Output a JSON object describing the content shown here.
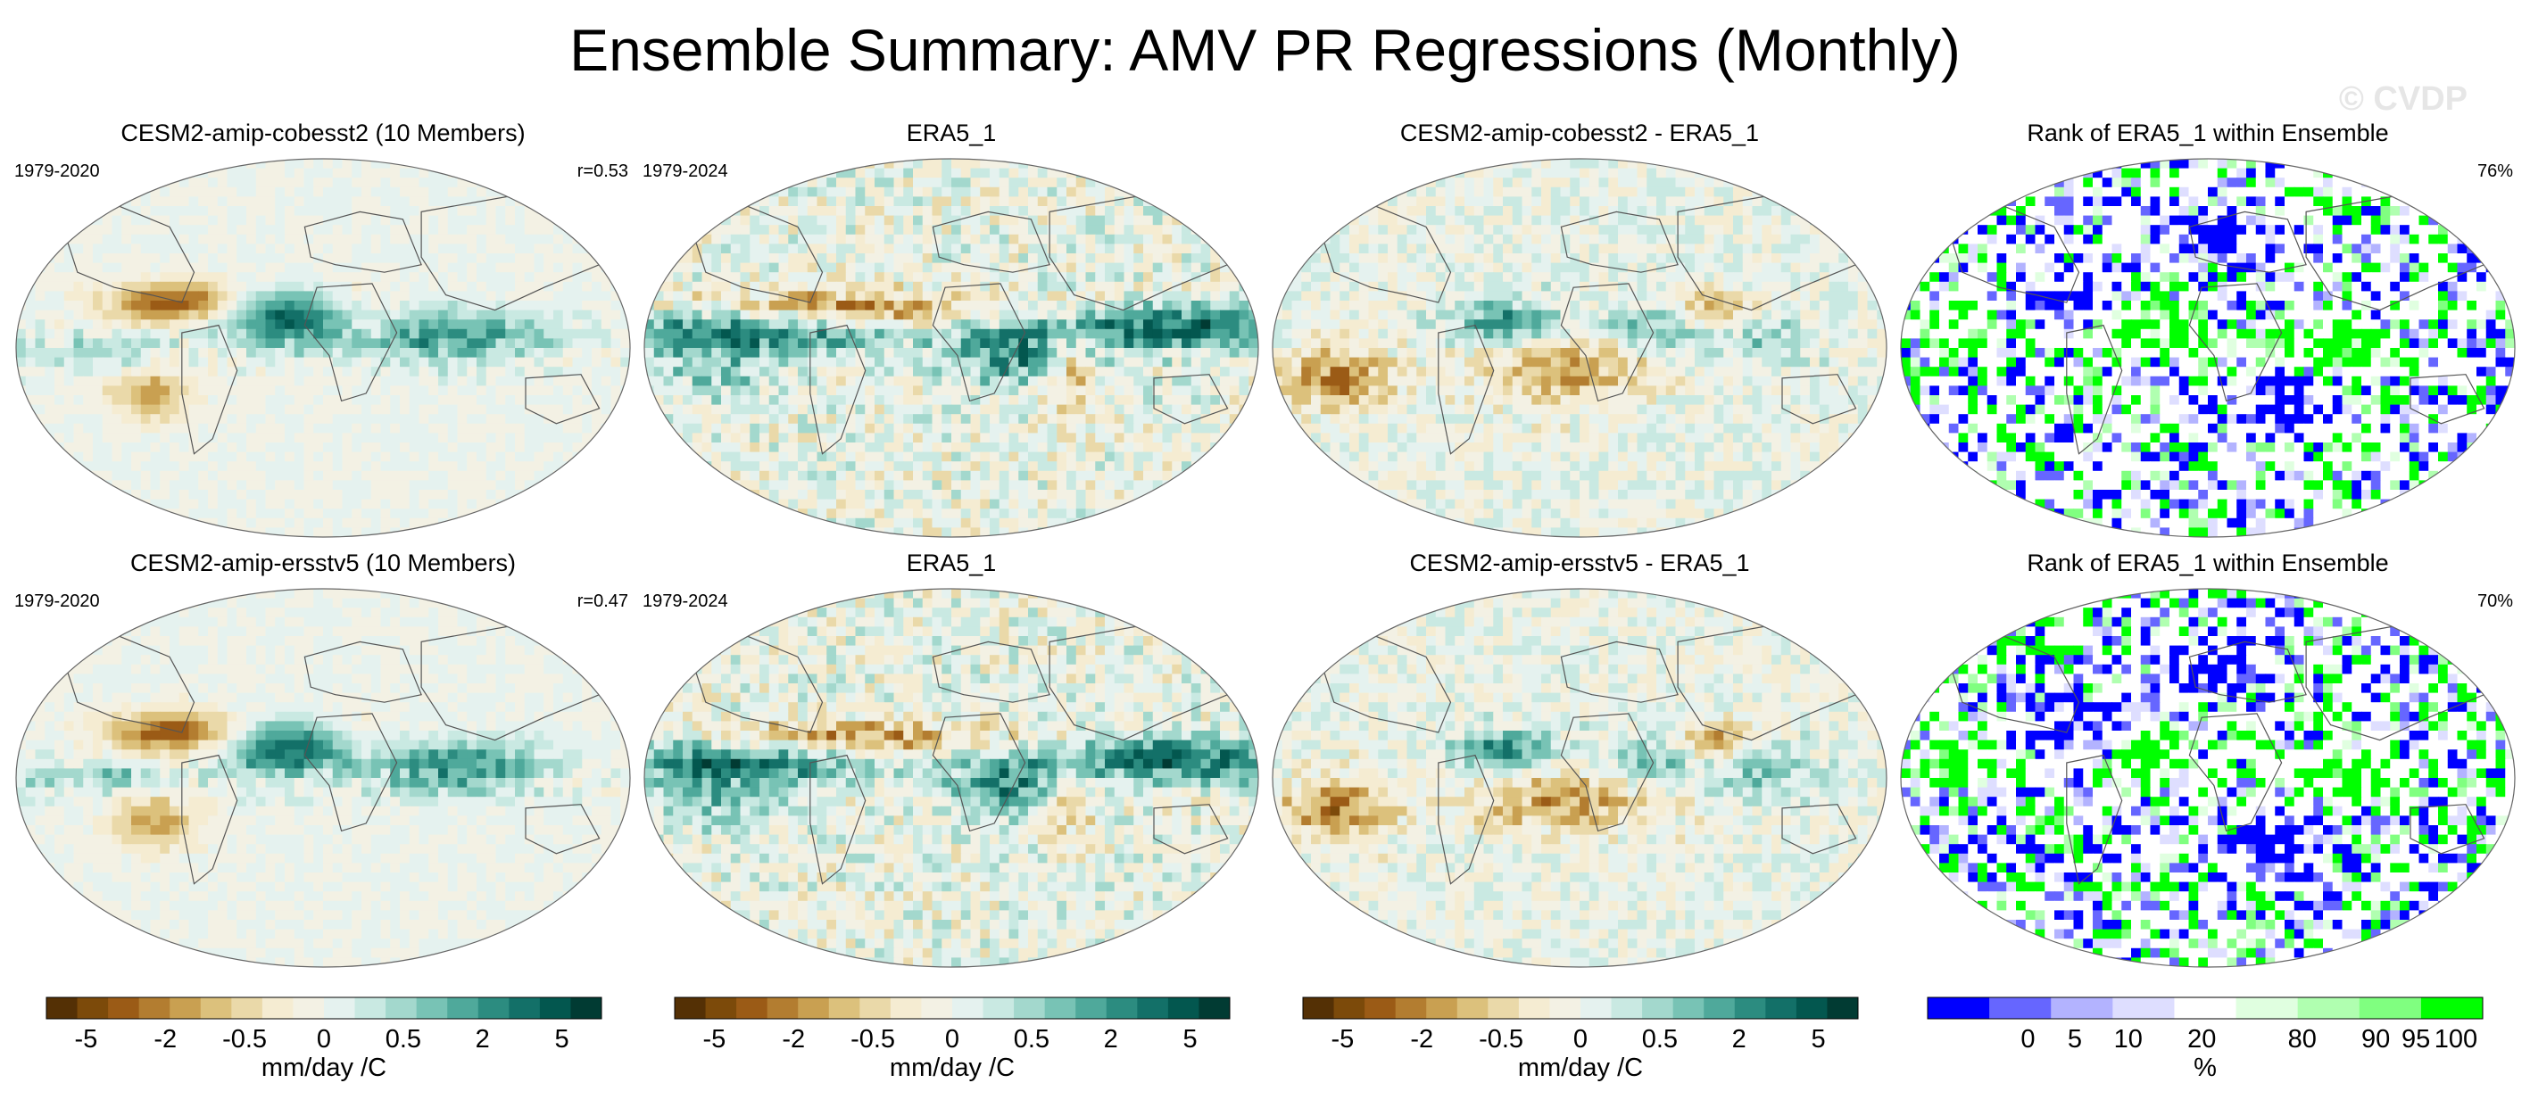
{
  "figure_title": "Ensemble Summary: AMV PR Regressions (Monthly)",
  "watermark": "© CVDP",
  "palettes": {
    "brbg": [
      "#543005",
      "#7c4a0a",
      "#9b5b16",
      "#b37d30",
      "#c9a051",
      "#dcc17c",
      "#ead9a9",
      "#f5ecd2",
      "#f3f1e4",
      "#e5f2ef",
      "#c9e9e2",
      "#a3d8cd",
      "#78c3b5",
      "#4fa99b",
      "#2c8c80",
      "#137068",
      "#03574f",
      "#013b33"
    ],
    "rank": [
      "#0000ff",
      "#6666ff",
      "#b3b3ff",
      "#dedeff",
      "#ffffff",
      "#e0ffe0",
      "#b0ffb0",
      "#80ff80",
      "#00ff00"
    ]
  },
  "chart_data": [
    {
      "type": "heatmap",
      "panel": "r1c1",
      "title": "CESM2-amip-cobesst2 (10 Members)",
      "left_label": "1979-2020",
      "right_label": "r=0.53",
      "field": "model",
      "variant": 1
    },
    {
      "type": "heatmap",
      "panel": "r1c2",
      "title": "ERA5_1",
      "left_label": "1979-2024",
      "right_label": "",
      "field": "obs",
      "variant": 1
    },
    {
      "type": "heatmap",
      "panel": "r1c3",
      "title": "CESM2-amip-cobesst2 - ERA5_1",
      "left_label": "",
      "right_label": "",
      "field": "diff",
      "variant": 1
    },
    {
      "type": "heatmap",
      "panel": "r1c4",
      "title": "Rank of ERA5_1 within Ensemble",
      "left_label": "",
      "right_label": "76%",
      "field": "rank",
      "variant": 1
    },
    {
      "type": "heatmap",
      "panel": "r2c1",
      "title": "CESM2-amip-ersstv5 (10 Members)",
      "left_label": "1979-2020",
      "right_label": "r=0.47",
      "field": "model",
      "variant": 2
    },
    {
      "type": "heatmap",
      "panel": "r2c2",
      "title": "ERA5_1",
      "left_label": "1979-2024",
      "right_label": "",
      "field": "obs",
      "variant": 2
    },
    {
      "type": "heatmap",
      "panel": "r2c3",
      "title": "CESM2-amip-ersstv5 - ERA5_1",
      "left_label": "",
      "right_label": "",
      "field": "diff",
      "variant": 2
    },
    {
      "type": "heatmap",
      "panel": "r2c4",
      "title": "Rank of ERA5_1 within Ensemble",
      "left_label": "",
      "right_label": "70%",
      "field": "rank",
      "variant": 2
    }
  ],
  "colorbars": [
    {
      "units": "mm/day /C",
      "ticks": [
        "-5",
        "-2",
        "-0.5",
        "0",
        "0.5",
        "2",
        "5"
      ],
      "palette": "brbg"
    },
    {
      "units": "mm/day /C",
      "ticks": [
        "-5",
        "-2",
        "-0.5",
        "0",
        "0.5",
        "2",
        "5"
      ],
      "palette": "brbg"
    },
    {
      "units": "mm/day /C",
      "ticks": [
        "-5",
        "-2",
        "-0.5",
        "0",
        "0.5",
        "2",
        "5"
      ],
      "palette": "brbg"
    },
    {
      "units": "%",
      "ticks": [
        "0",
        "5",
        "10",
        "20",
        "80",
        "90",
        "95",
        "100"
      ],
      "palette": "rank"
    }
  ]
}
